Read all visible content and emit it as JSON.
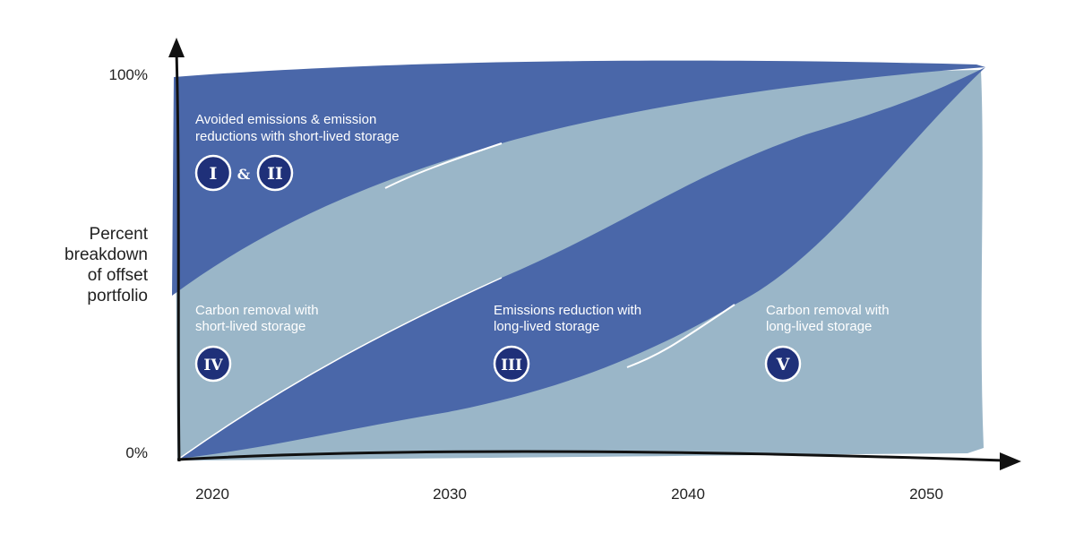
{
  "y_axis": {
    "title_lines": [
      "Percent",
      "breakdown",
      "of offset",
      "portfolio"
    ],
    "ticks": [
      "100%",
      "0%"
    ]
  },
  "x_axis": {
    "ticks": [
      "2020",
      "2030",
      "2040",
      "2050"
    ]
  },
  "regions": [
    {
      "label_lines": [
        "Avoided emissions & emission",
        "reductions with short-lived storage"
      ],
      "badges": [
        "I",
        "II"
      ],
      "joiner": "&"
    },
    {
      "label_lines": [
        "Carbon removal with",
        "short-lived storage"
      ],
      "badges": [
        "IV"
      ]
    },
    {
      "label_lines": [
        "Emissions reduction with",
        "long-lived storage"
      ],
      "badges": [
        "III"
      ]
    },
    {
      "label_lines": [
        "Carbon removal with",
        "long-lived storage"
      ],
      "badges": [
        "V"
      ]
    }
  ]
}
